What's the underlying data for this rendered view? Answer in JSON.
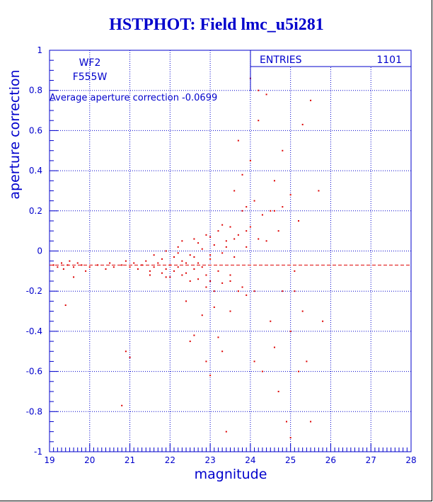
{
  "title": "HSTPHOT: Field lmc_u5i281",
  "chart_data": {
    "type": "scatter",
    "title": "HSTPHOT: Field lmc_u5i281",
    "xlabel": "magnitude",
    "ylabel": "aperture correction",
    "xlim": [
      19,
      28
    ],
    "ylim": [
      -1,
      1
    ],
    "xticks": [
      19,
      20,
      21,
      22,
      23,
      24,
      25,
      26,
      27,
      28
    ],
    "yticks": [
      -1,
      -0.8,
      -0.6,
      -0.4,
      -0.2,
      0,
      0.2,
      0.4,
      0.6,
      0.8,
      1
    ],
    "ytick_labels": [
      "-1",
      "-0.8",
      "-0.6",
      "-0.4",
      "-0.2",
      "0",
      "0.2",
      "0.4",
      "0.6",
      "0.8",
      "1"
    ],
    "grid": true,
    "point_color": "#dd0000",
    "axis_color": "#0000cc",
    "annotations": {
      "camera": "WF2",
      "filter": "F555W",
      "average_text": "Average aperture correction -0.0699"
    },
    "stats_box": {
      "label": "ENTRIES",
      "value": "1101"
    },
    "reference_line": {
      "y": -0.0699,
      "style": "dashed",
      "color": "#dd0000"
    },
    "points": [
      [
        19.1,
        -0.07
      ],
      [
        19.2,
        -0.08
      ],
      [
        19.3,
        -0.06
      ],
      [
        19.35,
        -0.09
      ],
      [
        19.45,
        -0.07
      ],
      [
        19.5,
        -0.05
      ],
      [
        19.6,
        -0.08
      ],
      [
        19.7,
        -0.06
      ],
      [
        19.8,
        -0.07
      ],
      [
        19.9,
        -0.1
      ],
      [
        20.0,
        -0.08
      ],
      [
        20.2,
        -0.07
      ],
      [
        20.4,
        -0.09
      ],
      [
        20.5,
        -0.06
      ],
      [
        20.6,
        -0.08
      ],
      [
        20.8,
        -0.07
      ],
      [
        20.9,
        -0.05
      ],
      [
        21.0,
        -0.08
      ],
      [
        21.1,
        -0.06
      ],
      [
        21.2,
        -0.09
      ],
      [
        21.3,
        -0.07
      ],
      [
        21.4,
        -0.05
      ],
      [
        21.5,
        -0.1
      ],
      [
        21.6,
        -0.08
      ],
      [
        21.7,
        -0.06
      ],
      [
        21.8,
        -0.04
      ],
      [
        21.9,
        -0.09
      ],
      [
        22.0,
        -0.07
      ],
      [
        22.1,
        -0.03
      ],
      [
        22.2,
        -0.08
      ],
      [
        22.3,
        -0.05
      ],
      [
        22.4,
        -0.11
      ],
      [
        22.5,
        -0.02
      ],
      [
        22.6,
        -0.09
      ],
      [
        22.7,
        -0.06
      ],
      [
        22.8,
        0.01
      ],
      [
        22.9,
        -0.12
      ],
      [
        23.0,
        -0.04
      ],
      [
        23.1,
        0.03
      ],
      [
        23.2,
        -0.1
      ],
      [
        23.3,
        -0.01
      ],
      [
        23.4,
        0.05
      ],
      [
        23.5,
        -0.15
      ],
      [
        23.6,
        -0.03
      ],
      [
        23.7,
        0.08
      ],
      [
        23.8,
        -0.18
      ],
      [
        23.9,
        0.02
      ],
      [
        24.0,
        0.12
      ],
      [
        24.1,
        -0.2
      ],
      [
        24.2,
        0.06
      ],
      [
        19.4,
        -0.27
      ],
      [
        19.6,
        -0.13
      ],
      [
        20.8,
        -0.77
      ],
      [
        20.9,
        -0.5
      ],
      [
        21.0,
        -0.53
      ],
      [
        21.9,
        -0.13
      ],
      [
        22.4,
        -0.25
      ],
      [
        22.5,
        -0.45
      ],
      [
        22.6,
        -0.42
      ],
      [
        22.8,
        -0.32
      ],
      [
        22.9,
        -0.55
      ],
      [
        23.0,
        -0.62
      ],
      [
        23.0,
        -0.15
      ],
      [
        23.1,
        -0.28
      ],
      [
        23.2,
        -0.43
      ],
      [
        23.3,
        -0.5
      ],
      [
        23.4,
        -0.9
      ],
      [
        23.5,
        -0.3
      ],
      [
        23.6,
        0.3
      ],
      [
        23.7,
        0.55
      ],
      [
        23.8,
        0.38
      ],
      [
        23.9,
        0.22
      ],
      [
        24.0,
        0.45
      ],
      [
        24.0,
        0.86
      ],
      [
        24.1,
        -0.55
      ],
      [
        24.2,
        0.65
      ],
      [
        24.2,
        0.8
      ],
      [
        24.3,
        -0.6
      ],
      [
        24.4,
        0.78
      ],
      [
        24.5,
        0.2
      ],
      [
        24.5,
        -0.35
      ],
      [
        24.6,
        0.35
      ],
      [
        24.6,
        -0.48
      ],
      [
        24.7,
        0.1
      ],
      [
        24.7,
        -0.7
      ],
      [
        24.8,
        0.5
      ],
      [
        24.8,
        -0.2
      ],
      [
        24.9,
        -0.85
      ],
      [
        25.0,
        -0.93
      ],
      [
        25.0,
        0.28
      ],
      [
        25.0,
        -0.4
      ],
      [
        25.1,
        -0.1
      ],
      [
        25.2,
        0.15
      ],
      [
        25.2,
        -0.6
      ],
      [
        25.3,
        0.63
      ],
      [
        25.3,
        -0.3
      ],
      [
        25.4,
        -0.55
      ],
      [
        25.5,
        0.75
      ],
      [
        25.5,
        -0.85
      ],
      [
        25.7,
        0.3
      ],
      [
        25.8,
        -0.35
      ],
      [
        22.2,
        0.02
      ],
      [
        22.3,
        0.05
      ],
      [
        22.6,
        0.06
      ],
      [
        22.7,
        0.04
      ],
      [
        22.9,
        0.08
      ],
      [
        23.0,
        0.07
      ],
      [
        23.2,
        0.1
      ],
      [
        23.3,
        0.13
      ],
      [
        23.4,
        0.02
      ],
      [
        23.5,
        0.12
      ],
      [
        23.6,
        0.06
      ],
      [
        23.8,
        0.2
      ],
      [
        23.9,
        0.1
      ],
      [
        24.1,
        0.25
      ],
      [
        24.3,
        0.18
      ],
      [
        24.4,
        0.05
      ],
      [
        24.6,
        0.2
      ],
      [
        24.8,
        0.22
      ],
      [
        25.1,
        -0.2
      ],
      [
        22.1,
        -0.1
      ],
      [
        22.3,
        -0.12
      ],
      [
        22.5,
        -0.15
      ],
      [
        22.7,
        -0.14
      ],
      [
        22.9,
        -0.18
      ],
      [
        23.1,
        -0.2
      ],
      [
        23.3,
        -0.16
      ],
      [
        23.5,
        -0.12
      ],
      [
        23.7,
        -0.2
      ],
      [
        23.9,
        -0.22
      ],
      [
        21.5,
        -0.12
      ],
      [
        21.6,
        -0.02
      ],
      [
        21.8,
        -0.11
      ],
      [
        21.9,
        0.0
      ],
      [
        22.0,
        -0.13
      ],
      [
        22.2,
        -0.01
      ],
      [
        22.4,
        -0.06
      ],
      [
        22.6,
        -0.03
      ],
      [
        22.8,
        -0.08
      ],
      [
        23.0,
        -0.02
      ]
    ]
  }
}
